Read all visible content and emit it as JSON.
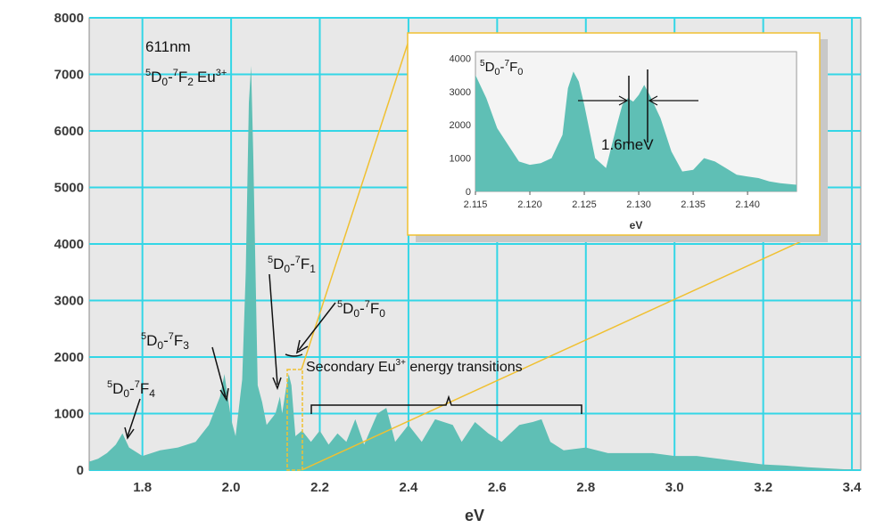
{
  "chart_data": {
    "type": "area",
    "xlabel": "eV",
    "ylabel": "",
    "xlim": [
      1.68,
      3.42
    ],
    "ylim": [
      0,
      8000
    ],
    "xticks": [
      "1.8",
      "2.0",
      "2.2",
      "2.4",
      "2.6",
      "2.8",
      "3.0",
      "3.2",
      "3.4"
    ],
    "yticks": [
      "0",
      "1000",
      "2000",
      "3000",
      "4000",
      "5000",
      "6000",
      "7000",
      "8000"
    ],
    "grid": true,
    "fill_color": "#5fbfb5",
    "grid_color": "#33d6e6",
    "background": "#e8e8e8",
    "series": [
      {
        "x": [
          1.68,
          1.7,
          1.72,
          1.74,
          1.755,
          1.77,
          1.8,
          1.84,
          1.88,
          1.92,
          1.95,
          1.975,
          1.985,
          2.0,
          2.01,
          2.025,
          2.033,
          2.04,
          2.045,
          2.05,
          2.06,
          2.07,
          2.08,
          2.09,
          2.1,
          2.11,
          2.115,
          2.125,
          2.13,
          2.136,
          2.145,
          2.16,
          2.18,
          2.2,
          2.22,
          2.24,
          2.26,
          2.28,
          2.3,
          2.33,
          2.35,
          2.37,
          2.4,
          2.43,
          2.46,
          2.5,
          2.52,
          2.55,
          2.58,
          2.61,
          2.65,
          2.68,
          2.7,
          2.72,
          2.75,
          2.8,
          2.85,
          2.9,
          2.95,
          3.0,
          3.05,
          3.1,
          3.15,
          3.2,
          3.25,
          3.3,
          3.35,
          3.42
        ],
        "y": [
          150,
          200,
          300,
          450,
          650,
          400,
          250,
          350,
          400,
          500,
          800,
          1300,
          1700,
          900,
          600,
          1600,
          3500,
          6500,
          7150,
          5600,
          1500,
          1200,
          800,
          900,
          1000,
          1300,
          1000,
          1500,
          1700,
          1500,
          600,
          700,
          500,
          700,
          450,
          650,
          500,
          900,
          450,
          1000,
          1100,
          500,
          800,
          500,
          900,
          800,
          500,
          850,
          650,
          500,
          800,
          850,
          900,
          500,
          350,
          400,
          300,
          300,
          300,
          250,
          250,
          200,
          150,
          100,
          80,
          50,
          30,
          0
        ]
      }
    ],
    "annotations": {
      "peak_main": "611nm",
      "peak_label_base": "D",
      "peak_label_sup": "5",
      "f2_label_base": "0-",
      "f2_label_sup": "7",
      "f2_label_end": "F",
      "f2_sub": "2",
      "eu": "Eu",
      "eu_sup": "3+",
      "f1_label": "F",
      "f1_sub": "1",
      "f0_sub": "0",
      "f3_sub": "3",
      "f4_sub": "4",
      "secondary": "Secondary Eu",
      "secondary_sup": "3+",
      "secondary_end": " energy transitions"
    },
    "inset": {
      "xlabel": "eV",
      "xlim": [
        2.115,
        2.1445
      ],
      "ylim": [
        0,
        4200
      ],
      "xticks": [
        "2.115",
        "2.120",
        "2.125",
        "2.130",
        "2.135",
        "2.140"
      ],
      "yticks": [
        "0",
        "1000",
        "2000",
        "3000",
        "4000"
      ],
      "label": "1.6meV",
      "x": [
        2.115,
        2.116,
        2.117,
        2.118,
        2.119,
        2.12,
        2.121,
        2.122,
        2.123,
        2.1235,
        2.124,
        2.1245,
        2.125,
        2.126,
        2.127,
        2.128,
        2.1285,
        2.129,
        2.1295,
        2.13,
        2.1305,
        2.131,
        2.132,
        2.133,
        2.134,
        2.135,
        2.136,
        2.137,
        2.138,
        2.139,
        2.14,
        2.141,
        2.142,
        2.143,
        2.1445
      ],
      "y": [
        3500,
        2800,
        1900,
        1400,
        900,
        800,
        850,
        1000,
        1700,
        3100,
        3600,
        3300,
        2600,
        1000,
        700,
        2000,
        2600,
        2800,
        2700,
        2900,
        3200,
        2900,
        2200,
        1200,
        600,
        650,
        1000,
        900,
        700,
        500,
        450,
        400,
        300,
        250,
        200
      ]
    }
  }
}
